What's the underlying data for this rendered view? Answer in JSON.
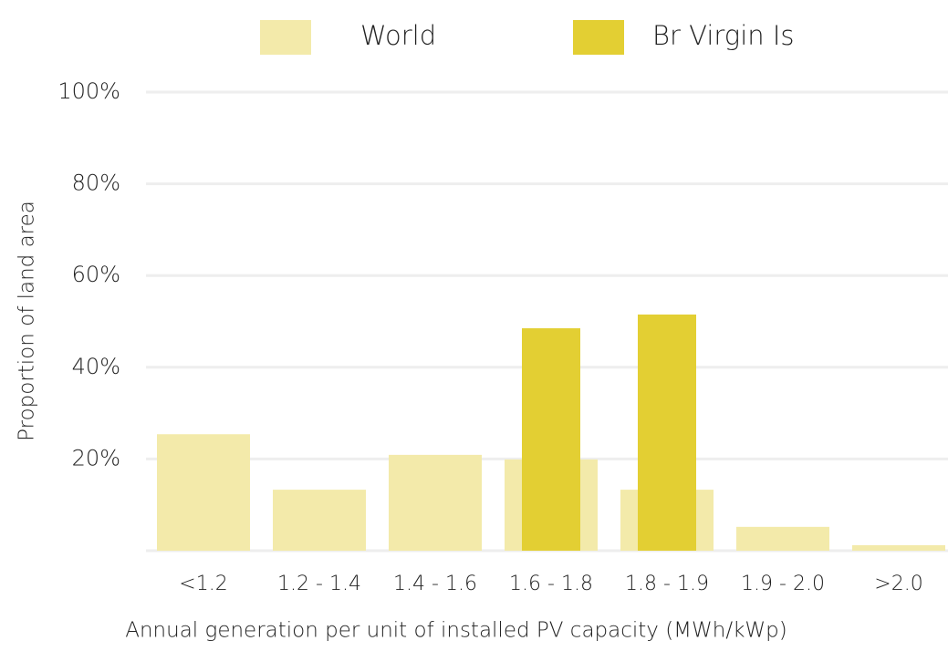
{
  "chart_data": {
    "type": "bar",
    "x_label": "Annual generation per unit of installed PV capacity (MWh/kWp)",
    "y_label": "Proportion of land area",
    "categories": [
      "<1.2",
      "1.2 - 1.4",
      "1.4 - 1.6",
      "1.6 - 1.8",
      "1.8 - 1.9",
      "1.9 - 2.0",
      ">2.0"
    ],
    "series": [
      {
        "name": "World",
        "color": "#f3eaaa",
        "values": [
          25.4,
          13.3,
          20.9,
          19.9,
          13.3,
          5.2,
          1.2
        ]
      },
      {
        "name": "Br Virgin Is",
        "color": "#e3cf33",
        "values": [
          0,
          0,
          0,
          48.5,
          51.5,
          0,
          0
        ]
      }
    ],
    "ylim": [
      0,
      100
    ],
    "yticks": [
      {
        "value": 20,
        "label": "20%"
      },
      {
        "value": 40,
        "label": "40%"
      },
      {
        "value": 60,
        "label": "60%"
      },
      {
        "value": 80,
        "label": "80%"
      },
      {
        "value": 100,
        "label": "100%"
      }
    ],
    "grid": true,
    "legend": "top"
  }
}
